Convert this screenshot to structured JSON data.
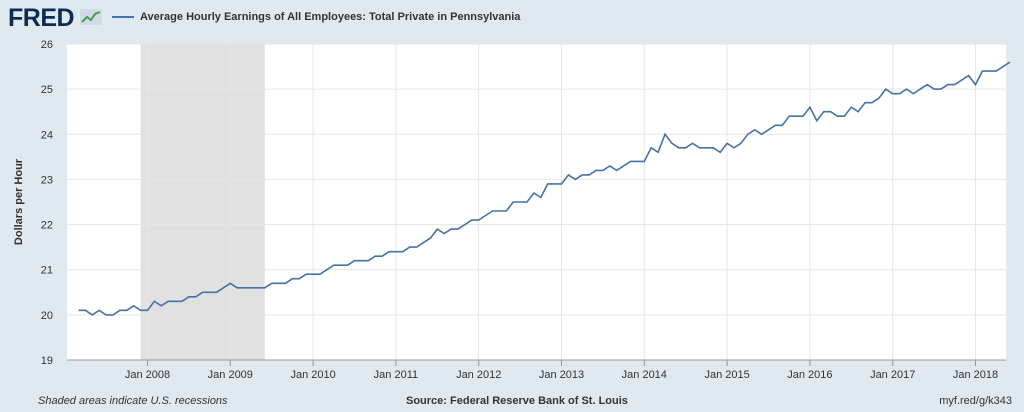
{
  "header": {
    "logo": "FRED",
    "logo_icon": "line-chart-icon"
  },
  "footer": {
    "note": "Shaded areas indicate U.S. recessions",
    "source": "Source: Federal Reserve Bank of St. Louis",
    "link": "myf.red/g/k343"
  },
  "colors": {
    "line": "#4572a7",
    "recession": "#e1e1e1",
    "background": "#e1e9f0"
  },
  "chart_data": {
    "type": "line",
    "title": "",
    "ylabel": "Dollars per Hour",
    "xlabel": "",
    "ylim": [
      19,
      26
    ],
    "yticks": [
      19,
      20,
      21,
      22,
      23,
      24,
      25,
      26
    ],
    "xtick_labels": [
      "Jan 2008",
      "Jan 2009",
      "Jan 2010",
      "Jan 2011",
      "Jan 2012",
      "Jan 2013",
      "Jan 2014",
      "Jan 2015",
      "Jan 2016",
      "Jan 2017",
      "Jan 2018"
    ],
    "grid": true,
    "recession": {
      "start": "2007-12",
      "end": "2009-06"
    },
    "series": [
      {
        "name": "Average Hourly Earnings of All Employees: Total Private in Pennsylvania",
        "start": "2007-03",
        "frequency": "monthly",
        "values": [
          20.1,
          20.1,
          20.0,
          20.1,
          20.0,
          20.0,
          20.1,
          20.1,
          20.2,
          20.1,
          20.1,
          20.3,
          20.2,
          20.3,
          20.3,
          20.3,
          20.4,
          20.4,
          20.5,
          20.5,
          20.5,
          20.6,
          20.7,
          20.6,
          20.6,
          20.6,
          20.6,
          20.6,
          20.7,
          20.7,
          20.7,
          20.8,
          20.8,
          20.9,
          20.9,
          20.9,
          21.0,
          21.1,
          21.1,
          21.1,
          21.2,
          21.2,
          21.2,
          21.3,
          21.3,
          21.4,
          21.4,
          21.4,
          21.5,
          21.5,
          21.6,
          21.7,
          21.9,
          21.8,
          21.9,
          21.9,
          22.0,
          22.1,
          22.1,
          22.2,
          22.3,
          22.3,
          22.3,
          22.5,
          22.5,
          22.5,
          22.7,
          22.6,
          22.9,
          22.9,
          22.9,
          23.1,
          23.0,
          23.1,
          23.1,
          23.2,
          23.2,
          23.3,
          23.2,
          23.3,
          23.4,
          23.4,
          23.4,
          23.7,
          23.6,
          24.0,
          23.8,
          23.7,
          23.7,
          23.8,
          23.7,
          23.7,
          23.7,
          23.6,
          23.8,
          23.7,
          23.8,
          24.0,
          24.1,
          24.0,
          24.1,
          24.2,
          24.2,
          24.4,
          24.4,
          24.4,
          24.6,
          24.3,
          24.5,
          24.5,
          24.4,
          24.4,
          24.6,
          24.5,
          24.7,
          24.7,
          24.8,
          25.0,
          24.9,
          24.9,
          25.0,
          24.9,
          25.0,
          25.1,
          25.0,
          25.0,
          25.1,
          25.1,
          25.2,
          25.3,
          25.1,
          25.4,
          25.4,
          25.4,
          25.5,
          25.6
        ]
      }
    ]
  }
}
